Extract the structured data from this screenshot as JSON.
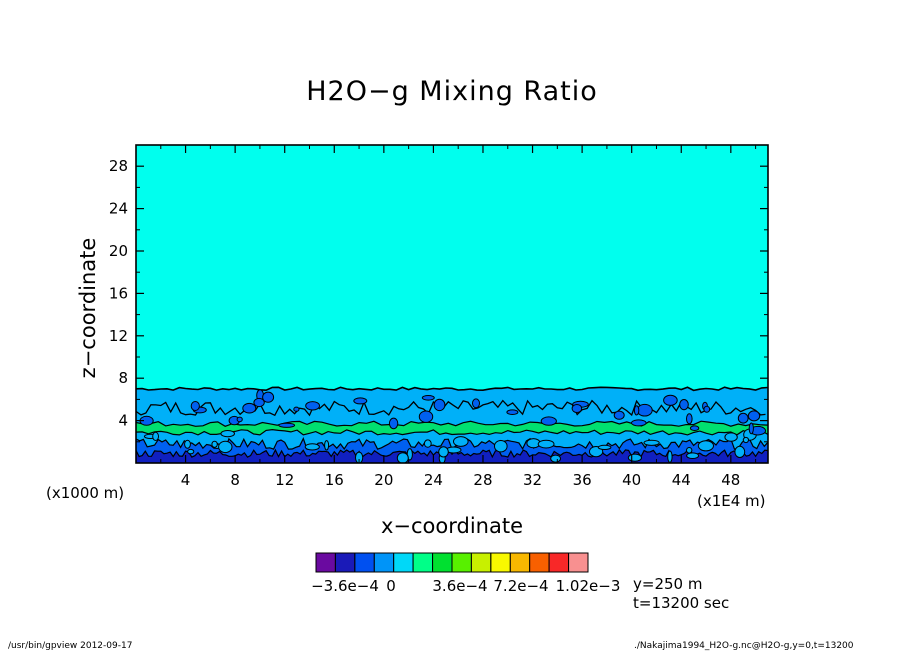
{
  "figure": {
    "title": "H2O−g Mixing Ratio",
    "x_units": "(x1000 m)",
    "x_units_right": "(x1E4 m)",
    "info_line1": "y=250 m",
    "info_line2": "t=13200 sec",
    "footer_left": "/usr/bin/gpview   2012-09-17",
    "footer_right": "./Nakajima1994_H2O-g.nc@H2O-g,y=0,t=13200"
  },
  "colors": {
    "background_field": "#00ffee",
    "band_lightblue": "#00b0f8",
    "band_green": "#00e070",
    "band_blue": "#0060f0",
    "band_darkblue": "#1020c0"
  },
  "chart_data": {
    "type": "heatmap",
    "title": "H2O−g Mixing Ratio",
    "xlabel": "x−coordinate",
    "ylabel": "z−coordinate",
    "xlim": [
      0,
      51
    ],
    "ylim": [
      0,
      30
    ],
    "x_ticks": [
      "4",
      "8",
      "12",
      "16",
      "20",
      "24",
      "28",
      "32",
      "36",
      "40",
      "44",
      "48"
    ],
    "y_ticks": [
      "4",
      "8",
      "12",
      "16",
      "20",
      "24",
      "28"
    ],
    "field_description": {
      "background_level": "0",
      "moist_layer_top_z": 7,
      "contour_band_z": [
        0,
        7
      ]
    },
    "colorbar": {
      "colors": [
        "#6a0aa0",
        "#1a1ab8",
        "#0050f0",
        "#0094f8",
        "#00d8f8",
        "#00ff88",
        "#00e030",
        "#58f000",
        "#c8f000",
        "#f8f800",
        "#f8b800",
        "#f86000",
        "#f82828",
        "#f89090"
      ],
      "tick_labels": [
        "−3.6e−4",
        "0",
        "3.6e−4",
        "7.2e−4",
        "1.02e−3"
      ]
    }
  }
}
